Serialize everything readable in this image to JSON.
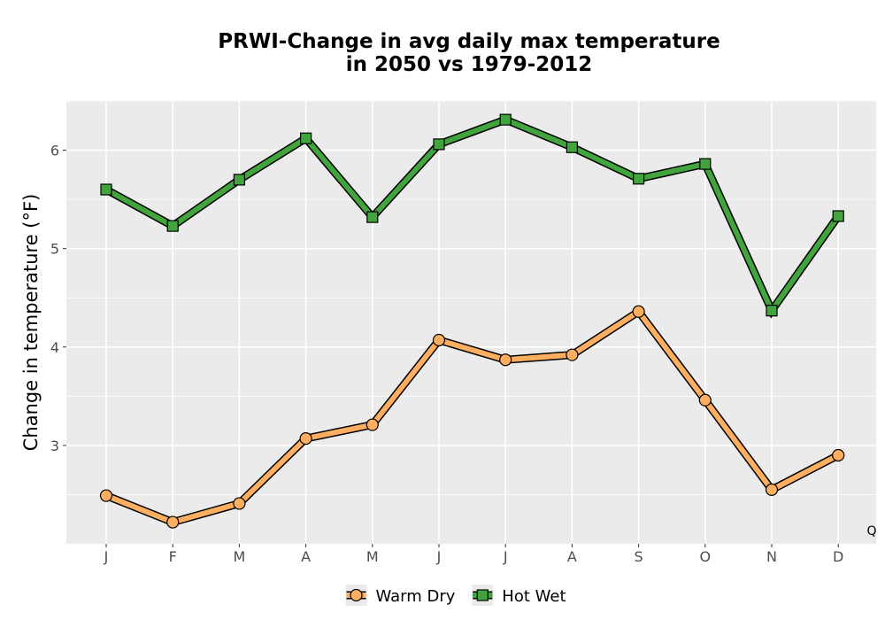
{
  "chart_data": {
    "type": "line",
    "title_line1": "PRWI-Change in avg daily max temperature",
    "title_line2": "in 2050 vs 1979-2012",
    "xlabel": "",
    "ylabel": "Change in temperature (°F)",
    "categories": [
      "J",
      "F",
      "M",
      "A",
      "M",
      "J",
      "J",
      "A",
      "S",
      "O",
      "N",
      "D"
    ],
    "ylim": [
      2.0,
      6.5
    ],
    "yticks": [
      3,
      4,
      5,
      6
    ],
    "grid": true,
    "legend_position": "bottom",
    "corner_label": "Q",
    "series": [
      {
        "name": "Warm Dry",
        "color": "#fdae61",
        "marker": "circle",
        "values": [
          2.49,
          2.22,
          2.41,
          3.07,
          3.21,
          4.07,
          3.87,
          3.92,
          4.36,
          3.46,
          2.55,
          2.9
        ]
      },
      {
        "name": "Hot Wet",
        "color": "#41a43c",
        "marker": "square",
        "values": [
          5.6,
          5.23,
          5.7,
          6.12,
          5.32,
          6.06,
          6.31,
          6.03,
          5.71,
          5.86,
          4.37,
          5.33
        ]
      }
    ]
  }
}
